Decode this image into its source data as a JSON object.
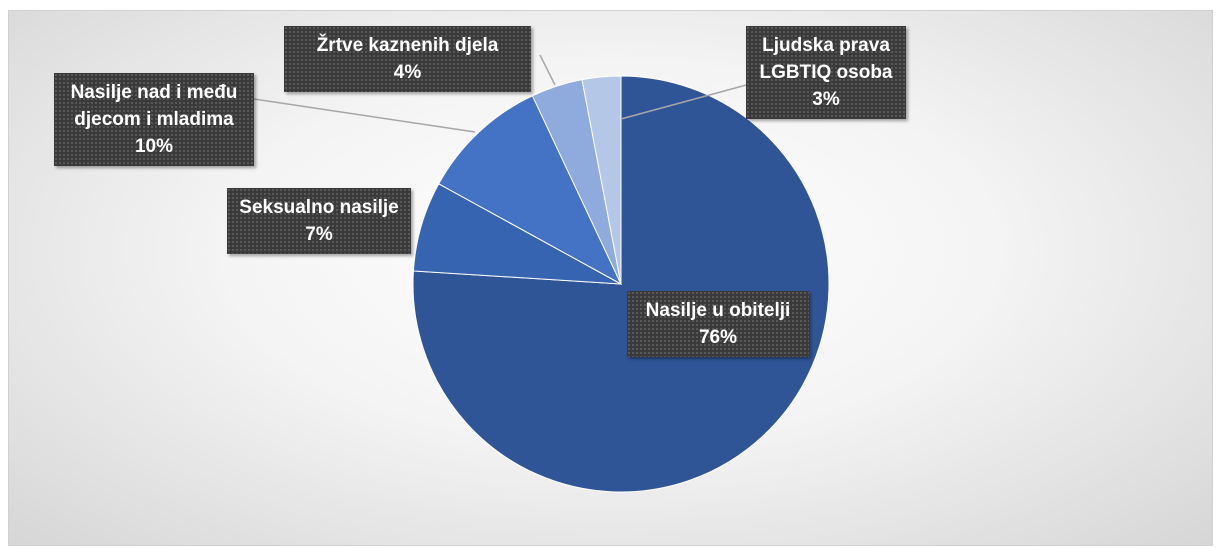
{
  "chart_data": {
    "type": "pie",
    "categories": [
      "Nasilje u obitelji",
      "Seksualno nasilje",
      "Nasilje nad i među djecom i mladima",
      "Žrtve kaznenih djela",
      "Ljudska prava LGBTIQ osoba"
    ],
    "values": [
      76,
      7,
      10,
      4,
      3
    ],
    "value_labels": [
      "76%",
      "7%",
      "10%",
      "4%",
      "3%"
    ],
    "colors": [
      "#2f5597",
      "#3764b0",
      "#4472c4",
      "#8faadc",
      "#b4c7e7"
    ]
  }
}
